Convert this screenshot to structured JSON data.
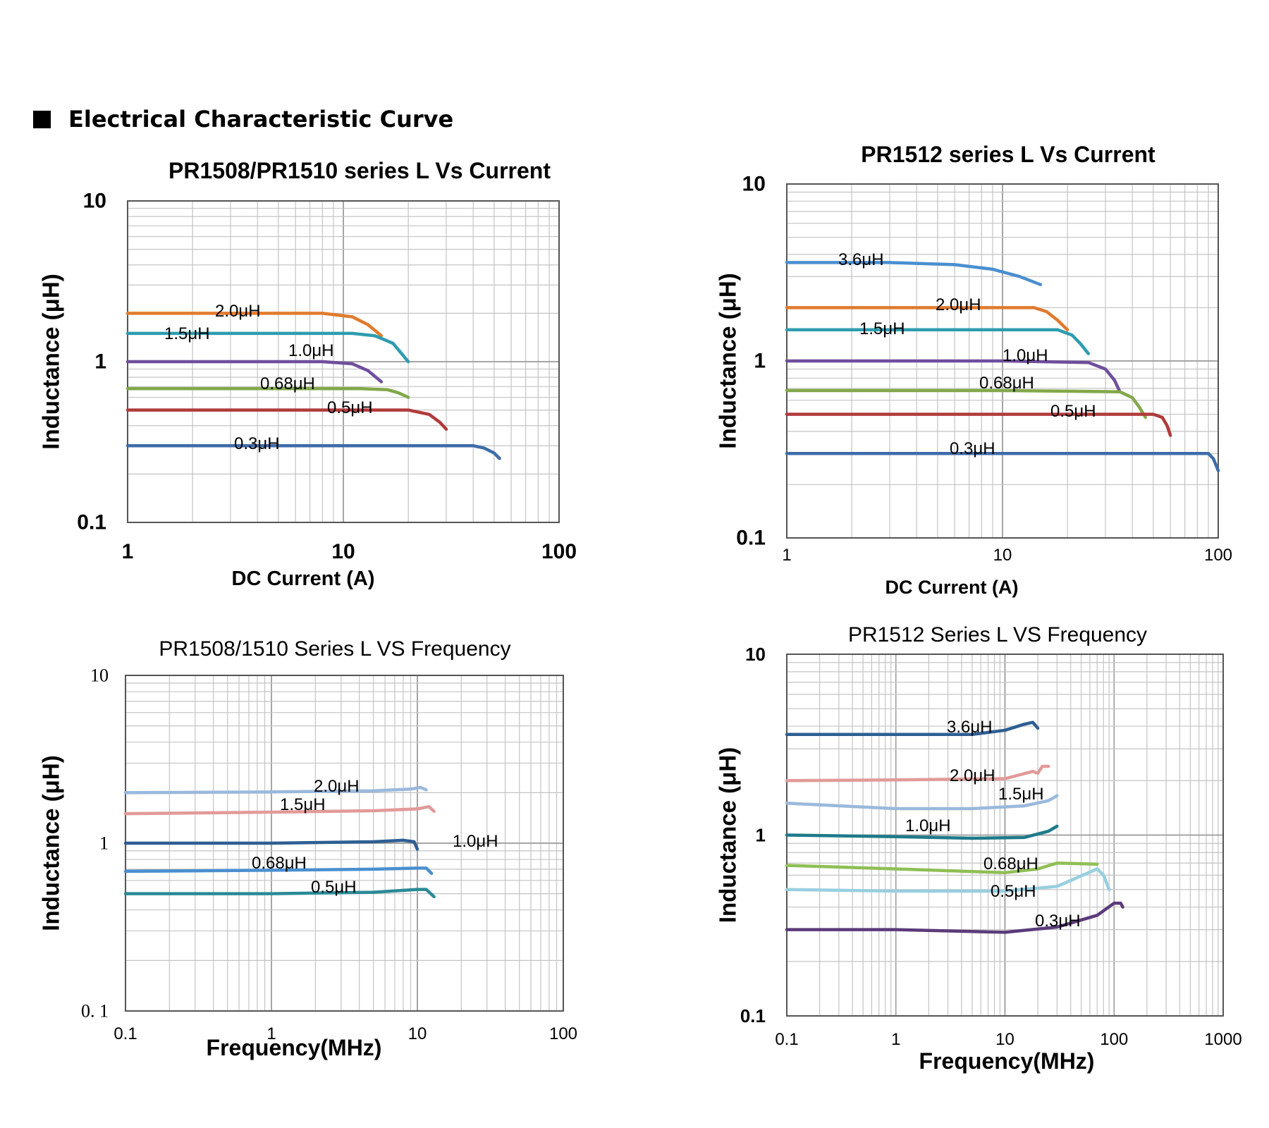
{
  "header": {
    "title": "Electrical Characteristic Curve"
  },
  "chart_data": [
    {
      "type": "line",
      "title": "PR1508/PR1510 series L Vs Current",
      "xlabel": "DC Current (A)",
      "ylabel": "Inductance (μH)",
      "xscale": "log",
      "yscale": "log",
      "xlim": [
        1,
        100
      ],
      "ylim": [
        0.1,
        10
      ],
      "xticks": [
        "1",
        "10",
        "100"
      ],
      "yticks": [
        "0.1",
        "1",
        "10"
      ],
      "grid": true,
      "series": [
        {
          "name": "2.0μH",
          "color": "#e07b2e",
          "x": [
            1,
            2,
            5,
            8,
            11,
            13,
            15
          ],
          "y": [
            2.0,
            2.0,
            2.0,
            2.0,
            1.9,
            1.7,
            1.45
          ]
        },
        {
          "name": "1.5μH",
          "color": "#2e9cae",
          "x": [
            1,
            3,
            8,
            11,
            14,
            17,
            20
          ],
          "y": [
            1.5,
            1.5,
            1.5,
            1.5,
            1.45,
            1.3,
            1.0
          ]
        },
        {
          "name": "1.0μH",
          "color": "#6f4f9d",
          "x": [
            1,
            3,
            8,
            11,
            13,
            15
          ],
          "y": [
            1.0,
            1.0,
            1.0,
            0.97,
            0.88,
            0.75
          ]
        },
        {
          "name": "0.68μH",
          "color": "#82a84a",
          "x": [
            1,
            5,
            12,
            16,
            18,
            20
          ],
          "y": [
            0.68,
            0.68,
            0.68,
            0.67,
            0.64,
            0.6
          ]
        },
        {
          "name": "0.5μH",
          "color": "#b13b3b",
          "x": [
            1,
            5,
            20,
            25,
            28,
            30
          ],
          "y": [
            0.5,
            0.5,
            0.5,
            0.47,
            0.42,
            0.38
          ]
        },
        {
          "name": "0.3μH",
          "color": "#3e6ca9",
          "x": [
            1,
            10,
            40,
            45,
            50,
            53
          ],
          "y": [
            0.3,
            0.3,
            0.3,
            0.29,
            0.27,
            0.25
          ]
        }
      ]
    },
    {
      "type": "line",
      "title": "PR1512 series L Vs Current",
      "xlabel": "DC Current (A)",
      "ylabel": "Inductance (μH)",
      "xscale": "log",
      "yscale": "log",
      "xlim": [
        1,
        100
      ],
      "ylim": [
        0.1,
        10
      ],
      "xticks": [
        "1",
        "10",
        "100"
      ],
      "yticks": [
        "0.1",
        "1",
        "10"
      ],
      "grid": true,
      "series": [
        {
          "name": "3.6μH",
          "color": "#4a8fd0",
          "x": [
            1,
            3,
            6,
            9,
            12,
            15
          ],
          "y": [
            3.6,
            3.6,
            3.5,
            3.3,
            3.0,
            2.7
          ]
        },
        {
          "name": "2.0μH",
          "color": "#e07b2e",
          "x": [
            1,
            5,
            14,
            16,
            18,
            20
          ],
          "y": [
            2.0,
            2.0,
            2.0,
            1.9,
            1.7,
            1.5
          ]
        },
        {
          "name": "1.5μH",
          "color": "#2e9cae",
          "x": [
            1,
            5,
            18,
            21,
            23,
            25
          ],
          "y": [
            1.5,
            1.5,
            1.5,
            1.4,
            1.25,
            1.1
          ]
        },
        {
          "name": "1.0μH",
          "color": "#6f4f9d",
          "x": [
            1,
            10,
            25,
            30,
            33,
            35
          ],
          "y": [
            1.0,
            1.0,
            0.98,
            0.9,
            0.78,
            0.67
          ]
        },
        {
          "name": "0.68μH",
          "color": "#82a84a",
          "x": [
            1,
            10,
            35,
            40,
            43,
            46
          ],
          "y": [
            0.68,
            0.68,
            0.67,
            0.62,
            0.55,
            0.48
          ]
        },
        {
          "name": "0.5μH",
          "color": "#b13b3b",
          "x": [
            1,
            10,
            50,
            55,
            58,
            60
          ],
          "y": [
            0.5,
            0.5,
            0.5,
            0.48,
            0.43,
            0.38
          ]
        },
        {
          "name": "0.3μH",
          "color": "#3e6ca9",
          "x": [
            1,
            10,
            90,
            95,
            100
          ],
          "y": [
            0.3,
            0.3,
            0.3,
            0.28,
            0.24
          ]
        }
      ]
    },
    {
      "type": "line",
      "title": "PR1508/1510 Series L VS Frequency",
      "xlabel": "Frequency(MHz)",
      "ylabel": "Inductance (μH)",
      "xscale": "log",
      "yscale": "log",
      "xlim": [
        0.1,
        100
      ],
      "ylim": [
        0.1,
        10
      ],
      "xticks": [
        "0.1",
        "1",
        "10",
        "100"
      ],
      "yticks": [
        "0. 1",
        "1",
        "10"
      ],
      "grid": true,
      "series": [
        {
          "name": "2.0μH",
          "color": "#9ab9dc",
          "x": [
            0.1,
            1,
            5,
            9,
            10.5,
            11.5
          ],
          "y": [
            2.0,
            2.02,
            2.05,
            2.1,
            2.15,
            2.08
          ]
        },
        {
          "name": "1.5μH",
          "color": "#e29a98",
          "x": [
            0.1,
            1,
            5,
            10,
            12,
            13
          ],
          "y": [
            1.5,
            1.53,
            1.56,
            1.6,
            1.65,
            1.55
          ]
        },
        {
          "name": "1.0μH",
          "color": "#2e5f93",
          "x": [
            0.1,
            1,
            5,
            8,
            9.5,
            10
          ],
          "y": [
            1.0,
            1.0,
            1.02,
            1.04,
            1.02,
            0.92
          ]
        },
        {
          "name": "0.68μH",
          "color": "#4a8fd0",
          "x": [
            0.1,
            1,
            5,
            10,
            11.5,
            12.5
          ],
          "y": [
            0.68,
            0.69,
            0.7,
            0.71,
            0.71,
            0.66
          ]
        },
        {
          "name": "0.5μH",
          "color": "#2a8a96",
          "x": [
            0.1,
            1,
            5,
            10,
            11.5,
            13
          ],
          "y": [
            0.5,
            0.5,
            0.51,
            0.53,
            0.53,
            0.48
          ]
        }
      ]
    },
    {
      "type": "line",
      "title": "PR1512 Series  L VS Frequency",
      "xlabel": "Frequency(MHz)",
      "ylabel": "Inductance (μH)",
      "xscale": "log",
      "yscale": "log",
      "xlim": [
        0.1,
        1000
      ],
      "ylim": [
        0.1,
        10
      ],
      "xticks": [
        "0.1",
        "1",
        "10",
        "100",
        "1000"
      ],
      "yticks": [
        "0.1",
        "1",
        "10"
      ],
      "grid": true,
      "series": [
        {
          "name": "3.6μH",
          "color": "#2e5f93",
          "x": [
            0.1,
            1,
            5,
            10,
            15,
            18,
            20
          ],
          "y": [
            3.6,
            3.6,
            3.6,
            3.8,
            4.1,
            4.2,
            3.9
          ]
        },
        {
          "name": "2.0μH",
          "color": "#e29a98",
          "x": [
            0.1,
            1,
            10,
            18,
            20,
            22,
            25
          ],
          "y": [
            2.0,
            2.02,
            2.05,
            2.25,
            2.2,
            2.4,
            2.4
          ]
        },
        {
          "name": "1.5μH",
          "color": "#9ab9dc",
          "x": [
            0.1,
            1,
            5,
            15,
            25,
            30
          ],
          "y": [
            1.5,
            1.4,
            1.4,
            1.45,
            1.55,
            1.65
          ]
        },
        {
          "name": "1.0μH",
          "color": "#1e7a8a",
          "x": [
            0.1,
            1,
            5,
            15,
            25,
            30
          ],
          "y": [
            1.0,
            0.98,
            0.96,
            0.97,
            1.05,
            1.12
          ]
        },
        {
          "name": "0.68μH",
          "color": "#8fbf55",
          "x": [
            0.1,
            1,
            10,
            20,
            30,
            70
          ],
          "y": [
            0.68,
            0.65,
            0.62,
            0.65,
            0.7,
            0.69
          ]
        },
        {
          "name": "0.5μH",
          "color": "#98cfe0",
          "x": [
            0.1,
            1,
            10,
            30,
            70,
            80,
            90
          ],
          "y": [
            0.5,
            0.49,
            0.49,
            0.52,
            0.65,
            0.6,
            0.5
          ]
        },
        {
          "name": "0.3μH",
          "color": "#5a3b7a",
          "x": [
            0.1,
            1,
            10,
            30,
            70,
            100,
            115,
            120
          ],
          "y": [
            0.3,
            0.3,
            0.29,
            0.31,
            0.36,
            0.42,
            0.42,
            0.4
          ]
        }
      ]
    }
  ]
}
